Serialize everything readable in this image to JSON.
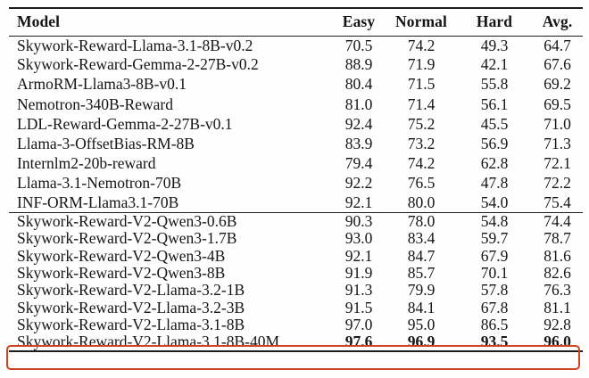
{
  "table": {
    "columns": [
      "Model",
      "Easy",
      "Normal",
      "Hard",
      "Avg."
    ],
    "sections": [
      {
        "name": "baseline-reward-models",
        "rows": [
          {
            "model": "Skywork-Reward-Llama-3.1-8B-v0.2",
            "easy": "70.5",
            "normal": "74.2",
            "hard": "49.3",
            "avg": "64.7",
            "bold_values": false,
            "highlighted": false
          },
          {
            "model": "Skywork-Reward-Gemma-2-27B-v0.2",
            "easy": "88.9",
            "normal": "71.9",
            "hard": "42.1",
            "avg": "67.6",
            "bold_values": false,
            "highlighted": false
          },
          {
            "model": "ArmoRM-Llama3-8B-v0.1",
            "easy": "80.4",
            "normal": "71.5",
            "hard": "55.8",
            "avg": "69.2",
            "bold_values": false,
            "highlighted": false
          },
          {
            "model": "Nemotron-340B-Reward",
            "easy": "81.0",
            "normal": "71.4",
            "hard": "56.1",
            "avg": "69.5",
            "bold_values": false,
            "highlighted": false
          },
          {
            "model": "LDL-Reward-Gemma-2-27B-v0.1",
            "easy": "92.4",
            "normal": "75.2",
            "hard": "45.5",
            "avg": "71.0",
            "bold_values": false,
            "highlighted": false
          },
          {
            "model": "Llama-3-OffsetBias-RM-8B",
            "easy": "83.9",
            "normal": "73.2",
            "hard": "56.9",
            "avg": "71.3",
            "bold_values": false,
            "highlighted": false
          },
          {
            "model": "Internlm2-20b-reward",
            "easy": "79.4",
            "normal": "74.2",
            "hard": "62.8",
            "avg": "72.1",
            "bold_values": false,
            "highlighted": false
          },
          {
            "model": "Llama-3.1-Nemotron-70B",
            "easy": "92.2",
            "normal": "76.5",
            "hard": "47.8",
            "avg": "72.2",
            "bold_values": false,
            "highlighted": false
          },
          {
            "model": "INF-ORM-Llama3.1-70B",
            "easy": "92.1",
            "normal": "80.0",
            "hard": "54.0",
            "avg": "75.4",
            "bold_values": false,
            "highlighted": false
          }
        ]
      },
      {
        "name": "skywork-reward-v2-models",
        "rows": [
          {
            "model": "Skywork-Reward-V2-Qwen3-0.6B",
            "easy": "90.3",
            "normal": "78.0",
            "hard": "54.8",
            "avg": "74.4",
            "bold_values": false,
            "highlighted": false
          },
          {
            "model": "Skywork-Reward-V2-Qwen3-1.7B",
            "easy": "93.0",
            "normal": "83.4",
            "hard": "59.7",
            "avg": "78.7",
            "bold_values": false,
            "highlighted": false
          },
          {
            "model": "Skywork-Reward-V2-Qwen3-4B",
            "easy": "92.1",
            "normal": "84.7",
            "hard": "67.9",
            "avg": "81.6",
            "bold_values": false,
            "highlighted": false
          },
          {
            "model": "Skywork-Reward-V2-Qwen3-8B",
            "easy": "91.9",
            "normal": "85.7",
            "hard": "70.1",
            "avg": "82.6",
            "bold_values": false,
            "highlighted": false
          },
          {
            "model": "Skywork-Reward-V2-Llama-3.2-1B",
            "easy": "91.3",
            "normal": "79.9",
            "hard": "57.8",
            "avg": "76.3",
            "bold_values": false,
            "highlighted": false
          },
          {
            "model": "Skywork-Reward-V2-Llama-3.2-3B",
            "easy": "91.5",
            "normal": "84.1",
            "hard": "67.8",
            "avg": "81.1",
            "bold_values": false,
            "highlighted": false
          },
          {
            "model": "Skywork-Reward-V2-Llama-3.1-8B",
            "easy": "97.0",
            "normal": "95.0",
            "hard": "86.5",
            "avg": "92.8",
            "bold_values": false,
            "highlighted": false
          },
          {
            "model": "Skywork-Reward-V2-Llama-3.1-8B-40M",
            "easy": "97.6",
            "normal": "96.9",
            "hard": "93.5",
            "avg": "96.0",
            "bold_values": true,
            "highlighted": true
          }
        ]
      }
    ],
    "highlight_color": "#cf431f"
  }
}
